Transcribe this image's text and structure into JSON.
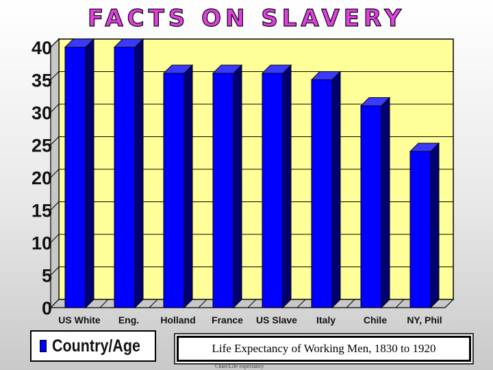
{
  "slide": {
    "title": "FACTS ON SLAVERY",
    "caption": "Life Expectancy of Working Men, 1830 to 1920",
    "footnote": "Chart/Life expectancy"
  },
  "colors": {
    "bar_front": "#0000ff",
    "bar_side": "#00006e",
    "bar_top": "#3a3aff",
    "plot_bg": "#ffff99",
    "plot_wall": "#c8c8c8",
    "title_fill": "#e040e0",
    "title_fill_alt": "#c0e040"
  },
  "chart_data": {
    "type": "bar",
    "categories": [
      "US White",
      "Eng.",
      "Holland",
      "France",
      "US Slave",
      "Italy",
      "Chile",
      "NY, Phil"
    ],
    "series": [
      {
        "name": "Country/Age",
        "values": [
          40,
          40,
          36,
          36,
          36,
          35,
          31,
          24
        ]
      }
    ],
    "title": "",
    "xlabel": "",
    "ylabel": "",
    "ylim": [
      0,
      40
    ],
    "yticks": [
      0,
      5,
      10,
      15,
      20,
      25,
      30,
      35,
      40
    ],
    "grid": true,
    "legend": "bottom-left"
  }
}
